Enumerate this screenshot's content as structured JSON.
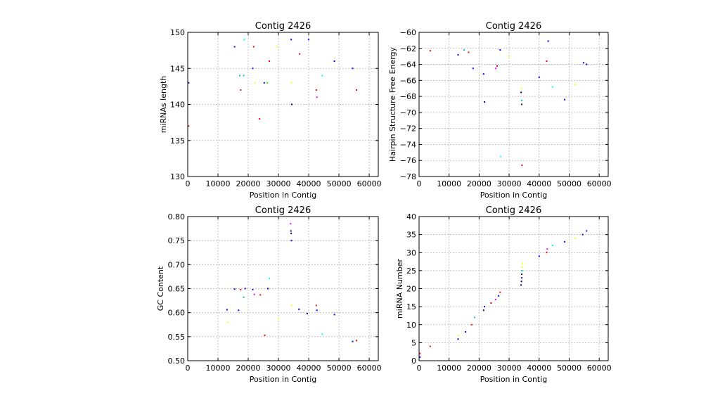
{
  "chart_data": [
    {
      "type": "scatter",
      "title": "Contig 2426",
      "xlabel": "Position in Contig",
      "ylabel": "miRNAs length",
      "xlim": [
        0,
        63000
      ],
      "ylim": [
        130,
        150
      ],
      "xticks": [
        0,
        10000,
        20000,
        30000,
        40000,
        50000,
        60000
      ],
      "yticks": [
        130,
        135,
        140,
        145,
        150
      ],
      "grid": true,
      "points": [
        {
          "x": 300,
          "y": 143,
          "color": "#0000ff"
        },
        {
          "x": 300,
          "y": 137,
          "color": "#ff0000"
        },
        {
          "x": 15500,
          "y": 148,
          "color": "#0000ff"
        },
        {
          "x": 17200,
          "y": 144,
          "color": "#00bfbf"
        },
        {
          "x": 17500,
          "y": 142,
          "color": "#ff0000"
        },
        {
          "x": 18500,
          "y": 144,
          "color": "#00bfbf"
        },
        {
          "x": 18700,
          "y": 149,
          "color": "#00ffff"
        },
        {
          "x": 21500,
          "y": 145,
          "color": "#0000ff"
        },
        {
          "x": 21800,
          "y": 148,
          "color": "#ff0000"
        },
        {
          "x": 22200,
          "y": 143,
          "color": "#ffff00"
        },
        {
          "x": 23700,
          "y": 138,
          "color": "#ff0000"
        },
        {
          "x": 25300,
          "y": 143,
          "color": "#0000ff"
        },
        {
          "x": 26300,
          "y": 143,
          "color": "#00ff00"
        },
        {
          "x": 27000,
          "y": 146,
          "color": "#ff0000"
        },
        {
          "x": 29500,
          "y": 148,
          "color": "#ffff00"
        },
        {
          "x": 34200,
          "y": 149,
          "color": "#0000ff"
        },
        {
          "x": 34300,
          "y": 143,
          "color": "#ffff00"
        },
        {
          "x": 34400,
          "y": 140,
          "color": "#000080"
        },
        {
          "x": 37000,
          "y": 147,
          "color": "#ff0000"
        },
        {
          "x": 40000,
          "y": 149,
          "color": "#0000ff"
        },
        {
          "x": 42500,
          "y": 142,
          "color": "#ff0000"
        },
        {
          "x": 42700,
          "y": 141,
          "color": "#ff00ff"
        },
        {
          "x": 44500,
          "y": 144,
          "color": "#00ffff"
        },
        {
          "x": 48500,
          "y": 146,
          "color": "#0000ff"
        },
        {
          "x": 54500,
          "y": 145,
          "color": "#0000ff"
        },
        {
          "x": 55800,
          "y": 142,
          "color": "#ff0000"
        }
      ]
    },
    {
      "type": "scatter",
      "title": "Contig 2426",
      "xlabel": "Position in Contig",
      "ylabel": "Hairpin Structure Free Energy",
      "xlim": [
        0,
        63000
      ],
      "ylim": [
        -78,
        -60
      ],
      "xticks": [
        0,
        10000,
        20000,
        30000,
        40000,
        50000,
        60000
      ],
      "yticks": [
        -78,
        -76,
        -74,
        -72,
        -70,
        -68,
        -66,
        -64,
        -62,
        -60
      ],
      "grid": true,
      "points": [
        {
          "x": 3700,
          "y": -62.3,
          "color": "#ff0000"
        },
        {
          "x": 13000,
          "y": -62.8,
          "color": "#0000ff"
        },
        {
          "x": 15000,
          "y": -62.2,
          "color": "#00bfbf"
        },
        {
          "x": 16500,
          "y": -62.5,
          "color": "#ff0000"
        },
        {
          "x": 18000,
          "y": -64.5,
          "color": "#0000ff"
        },
        {
          "x": 21500,
          "y": -65.2,
          "color": "#0000ff"
        },
        {
          "x": 21800,
          "y": -68.7,
          "color": "#000080"
        },
        {
          "x": 25500,
          "y": -64.5,
          "color": "#ff00ff"
        },
        {
          "x": 26000,
          "y": -64.2,
          "color": "#ff0000"
        },
        {
          "x": 27000,
          "y": -62.2,
          "color": "#0000ff"
        },
        {
          "x": 27200,
          "y": -75.5,
          "color": "#00ffff"
        },
        {
          "x": 30000,
          "y": -63.0,
          "color": "#ffff00"
        },
        {
          "x": 34000,
          "y": -67.5,
          "color": "#000080"
        },
        {
          "x": 34100,
          "y": -67.0,
          "color": "#ffff00"
        },
        {
          "x": 34200,
          "y": -68.5,
          "color": "#00bfbf"
        },
        {
          "x": 34200,
          "y": -69.0,
          "color": "#000080"
        },
        {
          "x": 34300,
          "y": -76.6,
          "color": "#ff0000"
        },
        {
          "x": 40000,
          "y": -65.6,
          "color": "#0000ff"
        },
        {
          "x": 42500,
          "y": -63.6,
          "color": "#ff0000"
        },
        {
          "x": 43000,
          "y": -61.1,
          "color": "#0000ff"
        },
        {
          "x": 44500,
          "y": -66.8,
          "color": "#00ffff"
        },
        {
          "x": 48500,
          "y": -68.4,
          "color": "#0000ff"
        },
        {
          "x": 52000,
          "y": -66.5,
          "color": "#ffff00"
        },
        {
          "x": 54800,
          "y": -63.8,
          "color": "#0000ff"
        },
        {
          "x": 55800,
          "y": -64.0,
          "color": "#0000ff"
        }
      ]
    },
    {
      "type": "scatter",
      "title": "Contig 2426",
      "xlabel": "Position in Contig",
      "ylabel": "GC Content",
      "xlim": [
        0,
        63000
      ],
      "ylim": [
        0.5,
        0.8
      ],
      "xticks": [
        0,
        10000,
        20000,
        30000,
        40000,
        50000,
        60000
      ],
      "yticks": [
        0.5,
        0.55,
        0.6,
        0.65,
        0.7,
        0.75,
        0.8
      ],
      "grid": true,
      "points": [
        {
          "x": 13000,
          "y": 0.606,
          "color": "#0000ff"
        },
        {
          "x": 13200,
          "y": 0.58,
          "color": "#ffff00"
        },
        {
          "x": 15500,
          "y": 0.649,
          "color": "#0000ff"
        },
        {
          "x": 16800,
          "y": 0.605,
          "color": "#0000ff"
        },
        {
          "x": 17500,
          "y": 0.648,
          "color": "#ff0000"
        },
        {
          "x": 18500,
          "y": 0.632,
          "color": "#00bfbf"
        },
        {
          "x": 19000,
          "y": 0.65,
          "color": "#0000ff"
        },
        {
          "x": 21500,
          "y": 0.648,
          "color": "#0000ff"
        },
        {
          "x": 22000,
          "y": 0.638,
          "color": "#ff00ff"
        },
        {
          "x": 24000,
          "y": 0.637,
          "color": "#ff0000"
        },
        {
          "x": 25500,
          "y": 0.553,
          "color": "#ff0000"
        },
        {
          "x": 26500,
          "y": 0.65,
          "color": "#0000ff"
        },
        {
          "x": 27000,
          "y": 0.671,
          "color": "#00ffff"
        },
        {
          "x": 30000,
          "y": 0.588,
          "color": "#ffff00"
        },
        {
          "x": 34000,
          "y": 0.785,
          "color": "#ff00ff"
        },
        {
          "x": 34100,
          "y": 0.77,
          "color": "#000080"
        },
        {
          "x": 34200,
          "y": 0.765,
          "color": "#000080"
        },
        {
          "x": 34300,
          "y": 0.75,
          "color": "#0000ff"
        },
        {
          "x": 34400,
          "y": 0.615,
          "color": "#ffff00"
        },
        {
          "x": 36800,
          "y": 0.607,
          "color": "#0000ff"
        },
        {
          "x": 39500,
          "y": 0.598,
          "color": "#000080"
        },
        {
          "x": 42500,
          "y": 0.615,
          "color": "#ff0000"
        },
        {
          "x": 42700,
          "y": 0.605,
          "color": "#0000ff"
        },
        {
          "x": 44500,
          "y": 0.555,
          "color": "#00ffff"
        },
        {
          "x": 48500,
          "y": 0.596,
          "color": "#0000ff"
        },
        {
          "x": 54500,
          "y": 0.54,
          "color": "#0000ff"
        },
        {
          "x": 55800,
          "y": 0.542,
          "color": "#ff0000"
        }
      ]
    },
    {
      "type": "scatter",
      "title": "Contig 2426",
      "xlabel": "Position in Contig",
      "ylabel": "miRNA Number",
      "xlim": [
        0,
        63000
      ],
      "ylim": [
        0,
        40
      ],
      "xticks": [
        0,
        10000,
        20000,
        30000,
        40000,
        50000,
        60000
      ],
      "yticks": [
        0,
        5,
        10,
        15,
        20,
        25,
        30,
        35,
        40
      ],
      "grid": true,
      "points": [
        {
          "x": 300,
          "y": 1,
          "color": "#0000ff"
        },
        {
          "x": 300,
          "y": 2,
          "color": "#ff0000"
        },
        {
          "x": 3700,
          "y": 4,
          "color": "#ff0000"
        },
        {
          "x": 13000,
          "y": 6,
          "color": "#0000ff"
        },
        {
          "x": 13200,
          "y": 7,
          "color": "#ffff00"
        },
        {
          "x": 15500,
          "y": 8,
          "color": "#0000ff"
        },
        {
          "x": 17500,
          "y": 10,
          "color": "#ff0000"
        },
        {
          "x": 18500,
          "y": 12,
          "color": "#00bfbf"
        },
        {
          "x": 21500,
          "y": 14,
          "color": "#000080"
        },
        {
          "x": 21800,
          "y": 15,
          "color": "#0000ff"
        },
        {
          "x": 24000,
          "y": 16,
          "color": "#ff0000"
        },
        {
          "x": 25500,
          "y": 17,
          "color": "#ff00ff"
        },
        {
          "x": 26500,
          "y": 18,
          "color": "#0000ff"
        },
        {
          "x": 27000,
          "y": 19,
          "color": "#ff0000"
        },
        {
          "x": 34000,
          "y": 21,
          "color": "#000080"
        },
        {
          "x": 34100,
          "y": 22,
          "color": "#000080"
        },
        {
          "x": 34200,
          "y": 23,
          "color": "#0000ff"
        },
        {
          "x": 34200,
          "y": 24,
          "color": "#000080"
        },
        {
          "x": 34300,
          "y": 25,
          "color": "#00bfbf"
        },
        {
          "x": 34300,
          "y": 26,
          "color": "#ffff00"
        },
        {
          "x": 34400,
          "y": 27,
          "color": "#ffff00"
        },
        {
          "x": 40000,
          "y": 29,
          "color": "#0000ff"
        },
        {
          "x": 42500,
          "y": 30,
          "color": "#ff0000"
        },
        {
          "x": 42700,
          "y": 31,
          "color": "#ff00ff"
        },
        {
          "x": 44500,
          "y": 32,
          "color": "#00ffff"
        },
        {
          "x": 48500,
          "y": 33,
          "color": "#0000ff"
        },
        {
          "x": 52000,
          "y": 34,
          "color": "#ffff00"
        },
        {
          "x": 54500,
          "y": 35,
          "color": "#0000ff"
        },
        {
          "x": 55800,
          "y": 36,
          "color": "#0000ff"
        }
      ]
    }
  ]
}
